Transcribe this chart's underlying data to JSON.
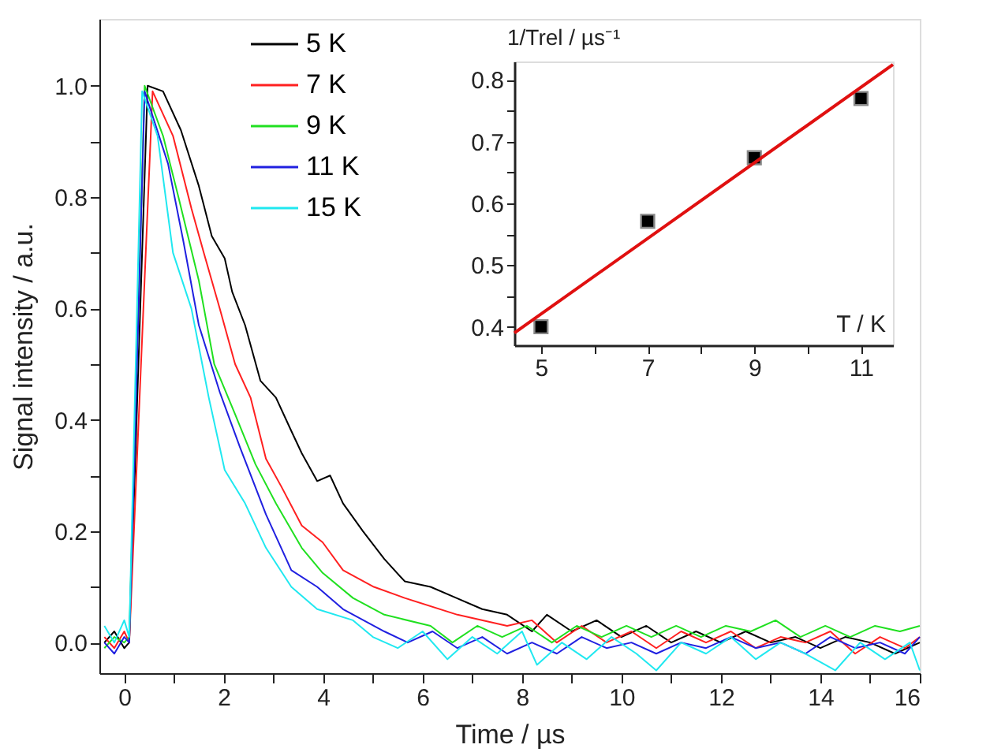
{
  "chart_data": [
    {
      "type": "line",
      "xlabel": "Time / µs",
      "ylabel": "Signal intensity / a.u.",
      "xlim": [
        -0.5,
        16
      ],
      "ylim": [
        -0.055,
        1.12
      ],
      "xticks": [
        0,
        {
          "value": 1,
          "label": null
        },
        2,
        {
          "value": 3,
          "label": null
        },
        4,
        {
          "value": 5,
          "label": null
        },
        6,
        {
          "value": 7,
          "label": null
        },
        8,
        {
          "value": 9,
          "label": null
        },
        10,
        {
          "value": 11,
          "label": null
        },
        12,
        {
          "value": 13,
          "label": null
        },
        14,
        {
          "value": 15,
          "label": null
        },
        16
      ],
      "yticks": [
        {
          "value": 0,
          "label": "0.0"
        },
        {
          "value": 0.1,
          "label": null
        },
        0.2,
        {
          "value": 0.3,
          "label": null
        },
        0.4,
        {
          "value": 0.5,
          "label": null
        },
        0.6,
        {
          "value": 0.7,
          "label": null
        },
        0.8,
        {
          "value": 0.9,
          "label": null
        },
        {
          "value": 1,
          "label": "1.0"
        }
      ],
      "grid": false,
      "legend": "top",
      "marker": "none",
      "line_style": "solid",
      "series": [
        {
          "name": "5 K",
          "color": "#000000",
          "x": [
            -0.4,
            -0.2,
            0.0,
            0.1,
            0.47,
            0.78,
            1.14,
            1.5,
            1.76,
            2.02,
            2.17,
            2.43,
            2.74,
            3.05,
            3.36,
            3.57,
            3.88,
            4.14,
            4.4,
            4.8,
            5.23,
            5.64,
            6.16,
            6.68,
            7.2,
            7.7,
            8.2,
            8.5,
            9,
            9.5,
            10,
            10.5,
            11,
            11.5,
            12,
            12.5,
            13,
            13.5,
            14,
            14.5,
            15,
            15.5,
            16
          ],
          "values": [
            0.0,
            0.02,
            -0.01,
            0.0,
            1.0,
            0.99,
            0.92,
            0.82,
            0.73,
            0.69,
            0.63,
            0.57,
            0.47,
            0.44,
            0.38,
            0.34,
            0.29,
            0.3,
            0.25,
            0.2,
            0.15,
            0.11,
            0.1,
            0.08,
            0.06,
            0.05,
            0.02,
            0.05,
            0.02,
            0.04,
            0.01,
            0.03,
            0.0,
            0.02,
            0.0,
            0.02,
            0.0,
            0.01,
            -0.01,
            0.01,
            0.0,
            -0.02,
            0.0
          ]
        },
        {
          "name": "7 K",
          "color": "#ff2020",
          "x": [
            -0.4,
            -0.2,
            0.0,
            0.1,
            0.57,
            0.98,
            1.35,
            1.6,
            1.92,
            2.23,
            2.54,
            2.85,
            3.16,
            3.57,
            3.99,
            4.4,
            5.02,
            5.64,
            6.7,
            7.7,
            8.2,
            8.7,
            9.2,
            9.7,
            10.2,
            10.7,
            11.2,
            11.7,
            12.2,
            12.7,
            13.2,
            13.7,
            14.2,
            14.7,
            15.2,
            15.7,
            16
          ],
          "values": [
            0.01,
            -0.01,
            0.02,
            0.0,
            0.99,
            0.91,
            0.78,
            0.7,
            0.6,
            0.5,
            0.44,
            0.33,
            0.28,
            0.21,
            0.18,
            0.13,
            0.1,
            0.08,
            0.05,
            0.03,
            0.04,
            0.0,
            0.03,
            0.0,
            0.02,
            -0.01,
            0.02,
            0.0,
            0.02,
            -0.01,
            0.01,
            0.0,
            0.02,
            -0.02,
            0.01,
            -0.01,
            0.01
          ]
        },
        {
          "name": "9 K",
          "color": "#20e020",
          "x": [
            -0.4,
            -0.2,
            0.0,
            0.1,
            0.41,
            0.78,
            1.09,
            1.5,
            1.81,
            2.23,
            2.64,
            3.05,
            3.57,
            3.99,
            4.6,
            5.23,
            6.16,
            6.6,
            7.1,
            7.6,
            8.1,
            8.6,
            9.1,
            9.6,
            10.1,
            10.6,
            11.1,
            11.6,
            12.1,
            12.6,
            13.1,
            13.6,
            14.1,
            14.6,
            15.1,
            15.6,
            16
          ],
          "values": [
            -0.01,
            0.01,
            0.0,
            0.01,
            1.0,
            0.91,
            0.8,
            0.65,
            0.5,
            0.41,
            0.32,
            0.25,
            0.17,
            0.125,
            0.08,
            0.05,
            0.03,
            0.0,
            0.03,
            0.01,
            0.03,
            0.0,
            0.03,
            0.01,
            0.03,
            0.01,
            0.03,
            0.01,
            0.03,
            0.02,
            0.04,
            0.01,
            0.03,
            0.01,
            0.03,
            0.02,
            0.03
          ]
        },
        {
          "name": "11 K",
          "color": "#2020e0",
          "x": [
            -0.4,
            -0.2,
            0.0,
            0.1,
            0.41,
            0.88,
            1.19,
            1.5,
            1.92,
            2.33,
            2.85,
            3.36,
            3.88,
            4.4,
            5.23,
            5.7,
            6.2,
            6.7,
            7.2,
            7.7,
            8.2,
            8.7,
            9.2,
            9.7,
            10.2,
            10.7,
            11.2,
            11.7,
            12.2,
            12.7,
            13.2,
            13.7,
            14.2,
            14.7,
            15.2,
            15.7,
            16
          ],
          "values": [
            0.0,
            -0.02,
            0.01,
            0.0,
            0.99,
            0.86,
            0.72,
            0.57,
            0.45,
            0.35,
            0.23,
            0.13,
            0.1,
            0.06,
            0.02,
            0.0,
            0.02,
            -0.01,
            0.01,
            -0.02,
            0.0,
            -0.02,
            0.01,
            -0.01,
            0.0,
            -0.02,
            0.0,
            -0.01,
            0.01,
            -0.01,
            0.0,
            -0.02,
            0.01,
            -0.01,
            0.0,
            -0.02,
            0.01
          ]
        },
        {
          "name": "15 K",
          "color": "#20e8f0",
          "x": [
            -0.4,
            -0.2,
            0.0,
            0.1,
            0.36,
            0.67,
            0.98,
            1.35,
            1.7,
            2.02,
            2.43,
            2.85,
            3.36,
            3.88,
            4.6,
            5.0,
            5.5,
            6.0,
            6.5,
            7.0,
            7.5,
            8.0,
            8.3,
            8.8,
            9.3,
            9.8,
            10.3,
            10.7,
            11.2,
            11.7,
            12.2,
            12.7,
            13.2,
            13.7,
            14.3,
            14.8,
            15.3,
            15.8,
            16
          ],
          "values": [
            0.03,
            0.0,
            0.04,
            0.01,
            0.99,
            0.91,
            0.7,
            0.6,
            0.44,
            0.31,
            0.25,
            0.17,
            0.1,
            0.06,
            0.04,
            0.01,
            -0.01,
            0.02,
            -0.03,
            0.01,
            -0.02,
            0.02,
            -0.04,
            0.0,
            -0.03,
            0.01,
            -0.02,
            -0.05,
            0.0,
            -0.02,
            0.01,
            -0.03,
            0.0,
            -0.02,
            -0.05,
            0.0,
            -0.03,
            0.0,
            -0.05
          ]
        }
      ]
    },
    {
      "type": "scatter",
      "xlabel": "T / K",
      "ylabel": "1/Trel / µs⁻¹",
      "xlim": [
        4.5,
        11.6
      ],
      "ylim": [
        0.37,
        0.83
      ],
      "xticks": [
        5,
        {
          "value": 6,
          "label": null
        },
        7,
        {
          "value": 8,
          "label": null
        },
        9,
        {
          "value": 10,
          "label": null
        },
        11
      ],
      "yticks": [
        0.4,
        {
          "value": 0.45,
          "label": null
        },
        0.5,
        {
          "value": 0.55,
          "label": null
        },
        0.6,
        {
          "value": 0.65,
          "label": null
        },
        0.7,
        {
          "value": 0.75,
          "label": null
        },
        0.8
      ],
      "grid": false,
      "legend": false,
      "series": [
        {
          "type": "scatter",
          "marker": "square",
          "color": "#000000",
          "x": [
            5,
            7,
            9,
            11
          ],
          "values": [
            0.4,
            0.571,
            0.674,
            0.77
          ]
        },
        {
          "type": "line",
          "marker": "none",
          "color": "#e01010",
          "x": [
            4.5,
            11.6
          ],
          "values": [
            0.39,
            0.825
          ]
        }
      ]
    }
  ]
}
